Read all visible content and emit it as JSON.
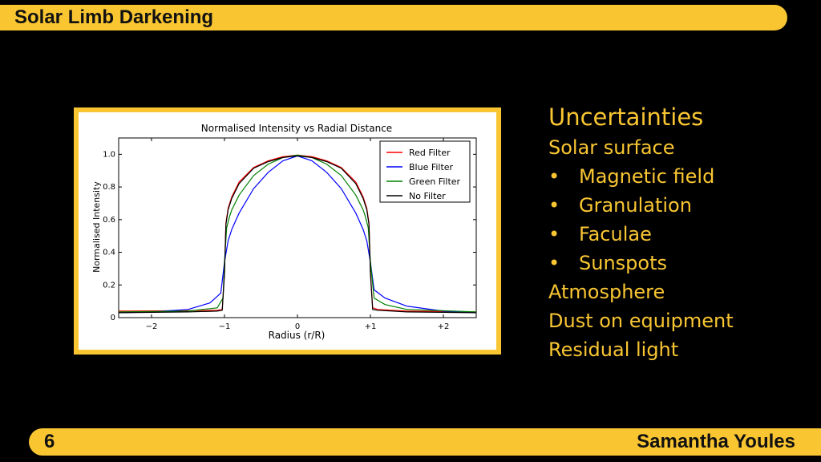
{
  "header": {
    "title": "Solar Limb Darkening"
  },
  "footer": {
    "slide_number": "6",
    "author": "Samantha Youles"
  },
  "right_panel": {
    "heading": "Uncertainties",
    "items": [
      {
        "text": "Solar surface",
        "bullet": false
      },
      {
        "text": "Magnetic field",
        "bullet": true
      },
      {
        "text": "Granulation",
        "bullet": true
      },
      {
        "text": "Faculae",
        "bullet": true
      },
      {
        "text": "Sunspots",
        "bullet": true
      },
      {
        "text": "Atmosphere",
        "bullet": false
      },
      {
        "text": "Dust on equipment",
        "bullet": false
      },
      {
        "text": "Residual light",
        "bullet": false
      }
    ],
    "bullet_glyph": "•"
  },
  "colors": {
    "accent": "#f9c632",
    "background": "#000000"
  },
  "chart_data": {
    "type": "line",
    "title": "Normalised Intensity vs Radial Distance",
    "xlabel": "Radius (r/R)",
    "ylabel": "Normalised Intensity",
    "xlim": [
      -2.45,
      2.45
    ],
    "ylim": [
      0,
      1.1
    ],
    "xticks": [
      -2,
      -1,
      0,
      1,
      2
    ],
    "xtick_labels": [
      "−2",
      "−1",
      "0",
      "+1",
      "+2"
    ],
    "yticks": [
      0,
      0.2,
      0.4,
      0.6,
      0.8,
      1.0
    ],
    "ytick_labels": [
      "0",
      "0.2",
      "0.4",
      "0.6",
      "0.8",
      "1.0"
    ],
    "legend_position": "top-right",
    "grid": false,
    "series": [
      {
        "name": "Red Filter",
        "color": "#ff0000",
        "x": [
          -2.45,
          -1.5,
          -1.1,
          -1.03,
          -1.0,
          -0.98,
          -0.95,
          -0.9,
          -0.8,
          -0.6,
          -0.4,
          -0.2,
          0,
          0.2,
          0.4,
          0.6,
          0.8,
          0.9,
          0.95,
          0.98,
          1.0,
          1.03,
          1.1,
          1.5,
          2.45
        ],
        "y": [
          0.04,
          0.042,
          0.045,
          0.05,
          0.28,
          0.58,
          0.67,
          0.74,
          0.83,
          0.92,
          0.96,
          0.985,
          0.995,
          0.985,
          0.96,
          0.92,
          0.83,
          0.74,
          0.67,
          0.58,
          0.28,
          0.06,
          0.05,
          0.04,
          0.035
        ]
      },
      {
        "name": "Blue Filter",
        "color": "#0000ff",
        "x": [
          -2.45,
          -2.0,
          -1.5,
          -1.2,
          -1.05,
          -1.0,
          -0.95,
          -0.9,
          -0.8,
          -0.6,
          -0.4,
          -0.2,
          0,
          0.2,
          0.4,
          0.6,
          0.8,
          0.9,
          0.95,
          1.0,
          1.05,
          1.2,
          1.5,
          2.0,
          2.45
        ],
        "y": [
          0.03,
          0.035,
          0.05,
          0.09,
          0.15,
          0.34,
          0.47,
          0.54,
          0.64,
          0.79,
          0.89,
          0.96,
          0.99,
          0.96,
          0.89,
          0.79,
          0.64,
          0.54,
          0.47,
          0.34,
          0.17,
          0.12,
          0.07,
          0.04,
          0.03
        ]
      },
      {
        "name": "Green Filter",
        "color": "#008000",
        "x": [
          -2.45,
          -1.5,
          -1.1,
          -1.02,
          -1.0,
          -0.97,
          -0.93,
          -0.9,
          -0.8,
          -0.6,
          -0.4,
          -0.2,
          0,
          0.2,
          0.4,
          0.6,
          0.8,
          0.9,
          0.93,
          0.97,
          1.0,
          1.05,
          1.2,
          1.5,
          2.45
        ],
        "y": [
          0.035,
          0.04,
          0.06,
          0.12,
          0.34,
          0.55,
          0.62,
          0.66,
          0.75,
          0.87,
          0.94,
          0.98,
          0.995,
          0.98,
          0.94,
          0.87,
          0.75,
          0.66,
          0.62,
          0.55,
          0.34,
          0.12,
          0.08,
          0.05,
          0.035
        ]
      },
      {
        "name": "No Filter",
        "color": "#000000",
        "x": [
          -2.45,
          -1.5,
          -1.1,
          -1.03,
          -1.0,
          -0.98,
          -0.95,
          -0.9,
          -0.8,
          -0.6,
          -0.4,
          -0.2,
          0,
          0.2,
          0.4,
          0.6,
          0.8,
          0.9,
          0.95,
          0.98,
          1.0,
          1.03,
          1.1,
          1.5,
          2.45
        ],
        "y": [
          0.03,
          0.035,
          0.04,
          0.045,
          0.27,
          0.57,
          0.66,
          0.73,
          0.82,
          0.915,
          0.955,
          0.98,
          0.99,
          0.98,
          0.955,
          0.915,
          0.82,
          0.73,
          0.66,
          0.57,
          0.27,
          0.05,
          0.045,
          0.035,
          0.03
        ]
      }
    ]
  }
}
